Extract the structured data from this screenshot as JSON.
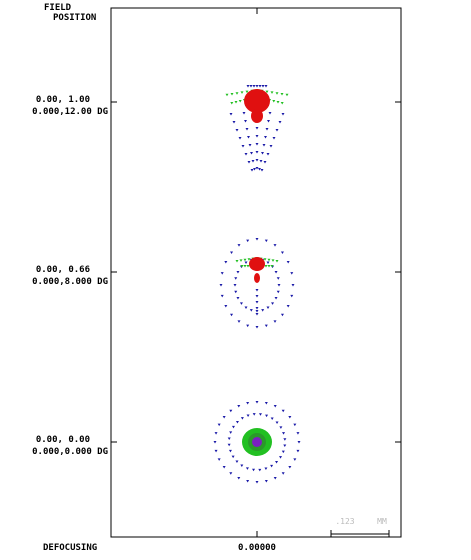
{
  "header": {
    "title_line1": "FIELD",
    "title_line2": "POSITION"
  },
  "fields": [
    {
      "position": "0.00, 1.00",
      "angle": "0.000,12.00 DG"
    },
    {
      "position": "0.00, 0.66",
      "angle": "0.000,8.000 DG"
    },
    {
      "position": "0.00, 0.00",
      "angle": "0.000,0.000 DG"
    }
  ],
  "footer": {
    "defocus_label": "DEFOCUSING",
    "defocus_value": "0.00000"
  },
  "scale": {
    "value": ".123",
    "unit": "MM"
  }
}
